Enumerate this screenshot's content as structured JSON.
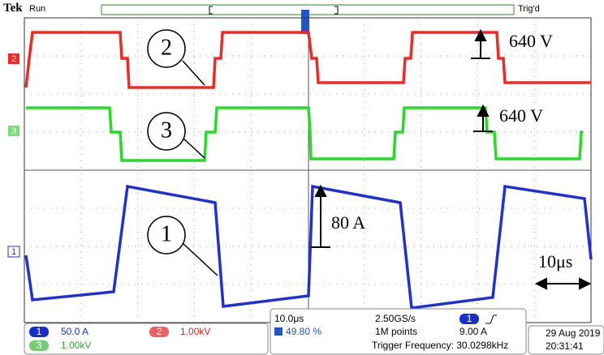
{
  "header": {
    "brand": "Tek",
    "state": "Run",
    "trigger_state": "Trig'd"
  },
  "channel_markers": {
    "ch2": "2",
    "ch3": "3",
    "ch1": "1"
  },
  "callouts": {
    "ch2": "2",
    "ch3": "3",
    "ch1": "1"
  },
  "annotations": {
    "ch2_step": "640 V",
    "ch3_step": "640 V",
    "ch1_step": "80 A",
    "time_span": "10μs"
  },
  "status": {
    "ch1_badge": "1",
    "ch1_scale": "50.0 A",
    "ch2_badge": "2",
    "ch2_scale": "1.00kV",
    "ch3_badge": "3",
    "ch3_scale": "1.00kV",
    "horizontal_scale": "10.0μs",
    "trigger_position": "49.80 %",
    "sample_rate": "2.50GS/s",
    "record_length": "1M points",
    "trigger_badge": "1",
    "trigger_level": "9.00 A",
    "trigger_frequency": "Trigger Frequency: 30.0298kHz",
    "date": "29 Aug 2019",
    "time": "20:31:41"
  }
}
